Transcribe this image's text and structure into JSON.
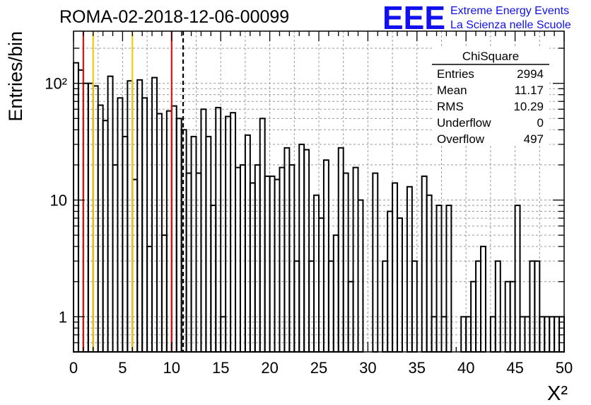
{
  "title": "ROMA-02-2018-12-06-00099",
  "logo": {
    "mark": "EEE",
    "line1": "Extreme Energy Events",
    "line2": "La Scienza nelle Scuole",
    "color": "#1111ee"
  },
  "stats_box": {
    "title": "ChiSquare",
    "rows": [
      {
        "label": "Entries",
        "value": "2994"
      },
      {
        "label": "Mean",
        "value": "11.17"
      },
      {
        "label": "RMS",
        "value": "10.29"
      },
      {
        "label": "Underflow",
        "value": "0"
      },
      {
        "label": "Overflow",
        "value": "497"
      }
    ]
  },
  "chart_data": {
    "type": "histogram",
    "title": "ROMA-02-2018-12-06-00099",
    "xlabel": "Χ²",
    "ylabel": "Entries/bin",
    "xlim": [
      0,
      50
    ],
    "ylim": [
      0.5,
      280
    ],
    "log_y": true,
    "grid": true,
    "bin_width": 0.5,
    "x_ticks": [
      "0",
      "5",
      "10",
      "15",
      "20",
      "25",
      "30",
      "35",
      "40",
      "45",
      "50"
    ],
    "y_ticks": [
      {
        "value": 1,
        "label": "1"
      },
      {
        "value": 10,
        "label": "10"
      },
      {
        "value": 100,
        "label": "10²"
      }
    ],
    "values": [
      150,
      130,
      100,
      100,
      95,
      65,
      48,
      115,
      20,
      75,
      35,
      105,
      15,
      107,
      75,
      4,
      112,
      55,
      5,
      58,
      64,
      50,
      40,
      17,
      35,
      17,
      60,
      35,
      9,
      62,
      1,
      52,
      56,
      19,
      20,
      36,
      14,
      20,
      50,
      16,
      16,
      15,
      19,
      28,
      20,
      3,
      30,
      27,
      3,
      11,
      7,
      22,
      3,
      5,
      28,
      17,
      2,
      19,
      10,
      0.4,
      0.4,
      17,
      0.4,
      3,
      8,
      14,
      7,
      0.4,
      13,
      3,
      0.4,
      16,
      11,
      1,
      9,
      1,
      9,
      0.4,
      0.4,
      1,
      1,
      2,
      3,
      4,
      0.4,
      1,
      3,
      0.4,
      2,
      2,
      9,
      1,
      1,
      3,
      3,
      1,
      1,
      1,
      1,
      1
    ],
    "lines": [
      {
        "x": 1,
        "color": "#dd1111",
        "style": "solid"
      },
      {
        "x": 2,
        "color": "#eecc11",
        "style": "solid"
      },
      {
        "x": 6,
        "color": "#eecc11",
        "style": "solid"
      },
      {
        "x": 10,
        "color": "#dd1111",
        "style": "solid"
      },
      {
        "x": 11.17,
        "color": "#000000",
        "style": "dashed"
      }
    ]
  }
}
